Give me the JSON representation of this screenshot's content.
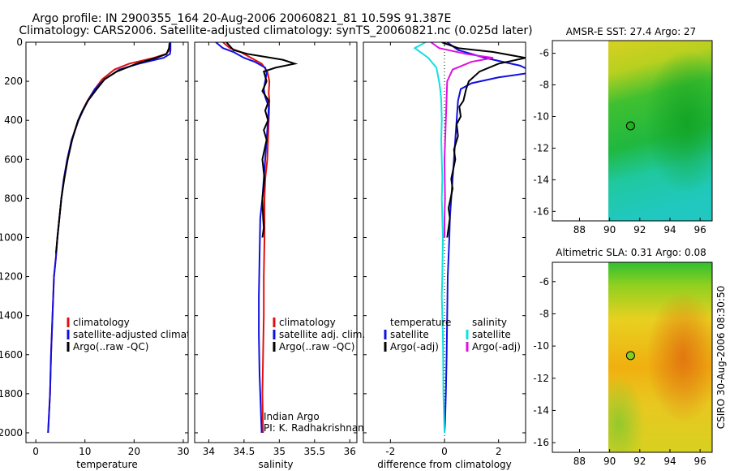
{
  "title": {
    "line1": "Argo profile: IN 2900355_164 20-Aug-2006 20060821_81 10.59S 91.387E",
    "line2": "Climatology: CARS2006. Satellite-adjusted climatology: synTS_20060821.nc (0.025d later)"
  },
  "side_label": "CSIRO 30-Aug-2006 08:30:50",
  "chart_data": [
    {
      "id": "temperature",
      "type": "line",
      "xlabel": "temperature",
      "ylabel": "",
      "xlim": [
        -2,
        31
      ],
      "ylim": [
        2050,
        0
      ],
      "xticks": [
        0,
        10,
        20,
        30
      ],
      "yticks": [
        0,
        200,
        400,
        600,
        800,
        1000,
        1200,
        1400,
        1600,
        1800,
        2000
      ],
      "legend": [
        "climatology",
        "satellite-adjusted climatology",
        "Argo(..raw -QC)"
      ],
      "series": [
        {
          "name": "climatology",
          "color": "#e01010",
          "x": [
            27.3,
            27.2,
            26.5,
            24,
            19,
            16,
            13.5,
            12,
            10.5,
            9.5,
            8.6,
            7.3,
            6.4,
            5.7,
            5.2,
            4.8,
            4.4,
            4.1,
            3.7,
            3.4,
            3.1,
            2.9,
            2.6,
            2.5
          ],
          "y": [
            0,
            40,
            60,
            80,
            110,
            140,
            190,
            240,
            300,
            350,
            400,
            500,
            600,
            700,
            800,
            900,
            1000,
            1100,
            1200,
            1400,
            1600,
            1800,
            1950,
            2000
          ]
        },
        {
          "name": "satellite-adjusted climatology",
          "color": "#1010e0",
          "x": [
            27.4,
            27.4,
            27.3,
            26,
            21,
            17,
            14,
            12,
            10.6,
            9.6,
            8.7,
            7.3,
            6.4,
            5.7,
            5.2,
            4.8,
            4.4,
            4.1,
            3.7,
            3.4,
            3.1,
            2.9,
            2.6,
            2.5
          ],
          "y": [
            0,
            40,
            60,
            80,
            110,
            140,
            190,
            240,
            300,
            350,
            400,
            500,
            600,
            700,
            800,
            900,
            1000,
            1100,
            1200,
            1400,
            1600,
            1800,
            1950,
            2000
          ]
        },
        {
          "name": "Argo(..raw -QC)",
          "color": "#000000",
          "x": [
            27.2,
            27.1,
            26.6,
            24.5,
            20.5,
            16.5,
            14,
            12.4,
            10.6,
            9.5,
            8.6,
            7.4,
            6.5,
            5.8,
            5.2,
            4.8,
            4.4,
            4.1
          ],
          "y": [
            5,
            30,
            60,
            80,
            110,
            150,
            190,
            240,
            300,
            350,
            400,
            500,
            600,
            700,
            800,
            900,
            1000,
            1080
          ]
        }
      ]
    },
    {
      "id": "salinity",
      "type": "line",
      "xlabel": "salinity",
      "ylabel": "",
      "xlim": [
        33.8,
        36.1
      ],
      "ylim": [
        2050,
        0
      ],
      "xticks": [
        34,
        34.5,
        35,
        35.5,
        36
      ],
      "yticks": [
        0,
        200,
        400,
        600,
        800,
        1000,
        1200,
        1400,
        1600,
        1800,
        2000
      ],
      "legend": [
        "climatology",
        "satellite adj. clim.",
        "Argo(..raw -QC)"
      ],
      "annotation": [
        "Indian Argo",
        "PI: K. Radhakrishnan"
      ],
      "series": [
        {
          "name": "climatology",
          "color": "#e01010",
          "x": [
            34.2,
            34.3,
            34.45,
            34.6,
            34.75,
            34.83,
            34.86,
            34.85,
            34.86,
            34.85,
            34.84,
            34.83,
            34.8,
            34.79,
            34.79,
            34.78,
            34.78,
            34.77,
            34.76,
            34.77
          ],
          "y": [
            0,
            30,
            50,
            80,
            110,
            150,
            200,
            260,
            300,
            400,
            500,
            600,
            700,
            800,
            1000,
            1200,
            1400,
            1600,
            1800,
            2000
          ]
        },
        {
          "name": "satellite adj. clim.",
          "color": "#1010e0",
          "x": [
            34.1,
            34.2,
            34.35,
            34.5,
            34.65,
            34.8,
            34.82,
            34.8,
            34.78,
            34.8,
            34.85,
            34.84,
            34.82,
            34.8,
            34.78,
            34.76,
            34.73,
            34.72,
            34.71,
            34.71,
            34.72,
            34.74,
            34.75
          ],
          "y": [
            0,
            30,
            50,
            80,
            100,
            130,
            160,
            200,
            240,
            280,
            330,
            400,
            500,
            600,
            700,
            800,
            900,
            1100,
            1300,
            1500,
            1700,
            1900,
            2000
          ]
        },
        {
          "name": "Argo(..raw -QC)",
          "color": "#000000",
          "x": [
            34.25,
            34.35,
            34.55,
            34.8,
            35.05,
            35.22,
            34.95,
            34.78,
            34.82,
            34.76,
            34.85,
            34.8,
            34.84,
            34.78,
            34.82,
            34.76,
            34.79,
            34.76,
            34.77,
            34.78,
            34.76
          ],
          "y": [
            0,
            40,
            60,
            75,
            90,
            110,
            130,
            150,
            200,
            250,
            300,
            350,
            400,
            450,
            500,
            600,
            700,
            800,
            900,
            950,
            1000
          ]
        }
      ]
    },
    {
      "id": "difference",
      "type": "line",
      "xlabel": "difference from climatology",
      "ylabel": "",
      "xlim": [
        -3,
        3
      ],
      "ylim": [
        2050,
        0
      ],
      "xticks": [
        -2,
        0,
        2
      ],
      "yticks": [
        0,
        200,
        400,
        600,
        800,
        1000,
        1200,
        1400,
        1600,
        1800,
        2000
      ],
      "legend_headers": [
        "temperature",
        "salinity"
      ],
      "legend": [
        "satellite",
        "Argo(-adj)",
        "satellite",
        "Argo(-adj)"
      ],
      "series": [
        {
          "name": "temperature satellite",
          "color": "#1010e0",
          "x": [
            0.1,
            0.5,
            1.5,
            2.8,
            3.1,
            3.0,
            2.0,
            1.0,
            0.6,
            0.5,
            0.45,
            0.4,
            0.35,
            0.3,
            0.25,
            0.2,
            0.18,
            0.15,
            0.12,
            0.1,
            0.08,
            0.05,
            0.03,
            0.02,
            0.0
          ],
          "y": [
            0,
            40,
            80,
            120,
            140,
            160,
            180,
            210,
            240,
            300,
            400,
            500,
            600,
            700,
            800,
            900,
            1000,
            1100,
            1200,
            1400,
            1600,
            1800,
            1900,
            1950,
            2000
          ]
        },
        {
          "name": "temperature Argo(-adj)",
          "color": "#000000",
          "x": [
            -0.1,
            0.5,
            1.8,
            3.0,
            2.0,
            1.3,
            0.9,
            0.8,
            0.7,
            0.55,
            0.6,
            0.45,
            0.5,
            0.35,
            0.4,
            0.25,
            0.3,
            0.15,
            0.2,
            0.15,
            0.1
          ],
          "y": [
            0,
            30,
            50,
            80,
            110,
            150,
            200,
            240,
            300,
            330,
            380,
            420,
            480,
            550,
            600,
            700,
            750,
            850,
            900,
            950,
            1000
          ]
        },
        {
          "name": "salinity satellite",
          "color": "#10e0e0",
          "x": [
            -0.7,
            -1.1,
            -0.6,
            -0.3,
            -0.2,
            -0.15,
            -0.12,
            -0.1,
            -0.12,
            -0.1,
            -0.08,
            -0.1,
            -0.08,
            -0.06,
            -0.07,
            -0.08,
            -0.1,
            -0.08,
            -0.06,
            -0.05,
            -0.04,
            -0.02,
            0.0
          ],
          "y": [
            0,
            30,
            80,
            130,
            200,
            250,
            300,
            400,
            500,
            600,
            700,
            800,
            900,
            1000,
            1100,
            1200,
            1300,
            1400,
            1500,
            1600,
            1800,
            1900,
            2000
          ]
        },
        {
          "name": "salinity Argo(-adj)",
          "color": "#e010e0",
          "x": [
            -0.5,
            -0.2,
            0.8,
            1.8,
            1.0,
            0.3,
            0.1,
            0.05,
            0.0,
            0.02,
            0.0,
            0.0
          ],
          "y": [
            0,
            30,
            60,
            80,
            100,
            140,
            200,
            400,
            600,
            800,
            900,
            1000
          ]
        }
      ]
    },
    {
      "id": "sst-map",
      "type": "heatmap",
      "title": "AMSR-E SST: 27.4 Argo: 27",
      "xlim": [
        86.2,
        96.8
      ],
      "ylim": [
        -16.6,
        -5.2
      ],
      "xticks": [
        88,
        90,
        92,
        94,
        96
      ],
      "yticks": [
        -6,
        -8,
        -10,
        -12,
        -14,
        -16
      ],
      "data_start_lon": 90,
      "argo_marker": {
        "lon": 91.387,
        "lat": -10.59
      }
    },
    {
      "id": "sla-map",
      "type": "heatmap",
      "title": "Altimetric SLA: 0.31 Argo: 0.08",
      "xlim": [
        86.2,
        96.8
      ],
      "ylim": [
        -16.6,
        -4.8
      ],
      "xticks": [
        88,
        90,
        92,
        94,
        96
      ],
      "yticks": [
        -6,
        -8,
        -10,
        -12,
        -14,
        -16
      ],
      "data_start_lon": 90,
      "argo_marker": {
        "lon": 91.387,
        "lat": -10.59
      }
    }
  ]
}
